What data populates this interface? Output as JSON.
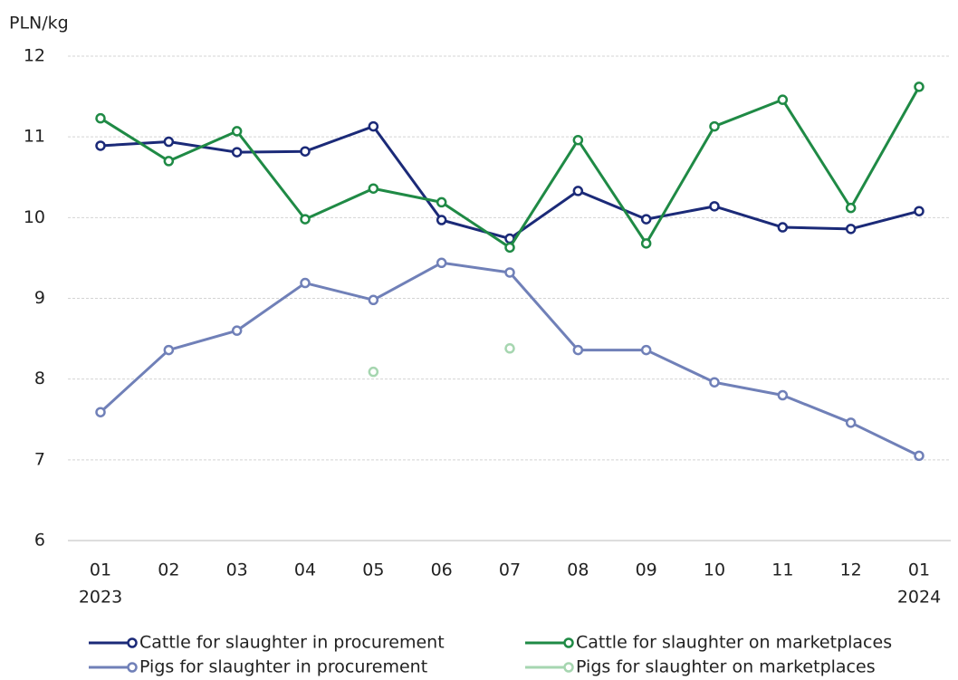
{
  "chart_data": {
    "type": "line",
    "y_axis_label": "PLN/kg",
    "categories": [
      [
        "01",
        "2023"
      ],
      [
        "02"
      ],
      [
        "03"
      ],
      [
        "04"
      ],
      [
        "05"
      ],
      [
        "06"
      ],
      [
        "07"
      ],
      [
        "08"
      ],
      [
        "09"
      ],
      [
        "10"
      ],
      [
        "11"
      ],
      [
        "12"
      ],
      [
        "01",
        "2024"
      ]
    ],
    "series": [
      {
        "name": "Cattle for slaughter in procurement",
        "color": "#1b2a78",
        "values": [
          10.89,
          10.94,
          10.81,
          10.82,
          11.13,
          9.97,
          9.74,
          10.33,
          9.98,
          10.14,
          9.88,
          9.86,
          10.08
        ]
      },
      {
        "name": "Cattle for slaughter on marketplaces",
        "color": "#1f8a45",
        "values": [
          11.23,
          10.7,
          11.07,
          9.98,
          10.36,
          10.19,
          9.63,
          10.96,
          9.68,
          11.13,
          11.46,
          10.12,
          11.62
        ]
      },
      {
        "name": "Pigs for slaughter in procurement",
        "color": "#7080b8",
        "values": [
          7.59,
          8.36,
          8.6,
          9.19,
          8.98,
          9.44,
          9.32,
          8.36,
          8.36,
          7.96,
          7.8,
          7.46,
          7.05
        ]
      },
      {
        "name": "Pigs for slaughter on marketplaces",
        "color": "#a6d6b0",
        "values": [
          null,
          null,
          null,
          null,
          8.09,
          null,
          8.38,
          null,
          null,
          null,
          null,
          null,
          null
        ]
      }
    ],
    "ylim": [
      6,
      12
    ],
    "yticks": [
      6,
      7,
      8,
      9,
      10,
      11,
      12
    ],
    "grid": true,
    "legend": "bottom"
  }
}
